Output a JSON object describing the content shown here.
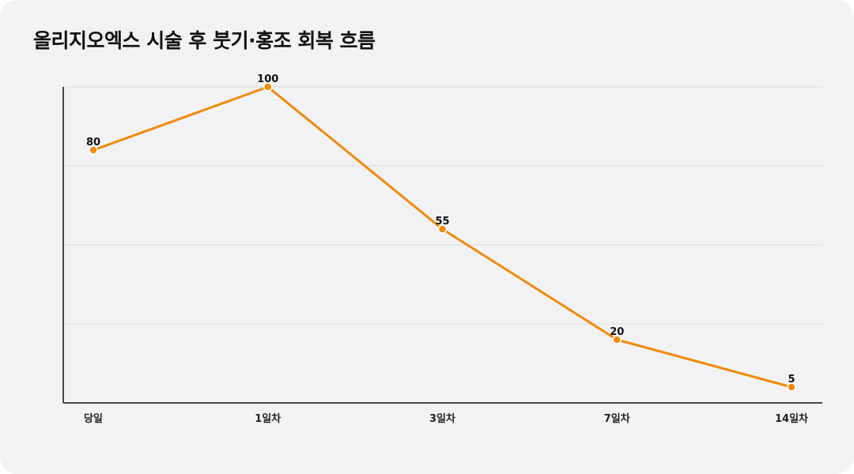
{
  "chart_data": {
    "type": "line",
    "title": "올리지오엑스 시술 후 붓기·홍조 회복 흐름",
    "categories": [
      "당일",
      "1일차",
      "3일차",
      "7일차",
      "14일차"
    ],
    "series": [
      {
        "values": [
          80,
          100,
          55,
          20,
          5
        ]
      }
    ],
    "data_labels": [
      "80",
      "100",
      "55",
      "20",
      "5"
    ],
    "ylim": [
      0,
      100
    ],
    "grid": true,
    "show_y_tick_labels": false,
    "xlabel": "",
    "ylabel": "",
    "line_color": "#f08a0c",
    "marker_color": "#f08a0c"
  }
}
